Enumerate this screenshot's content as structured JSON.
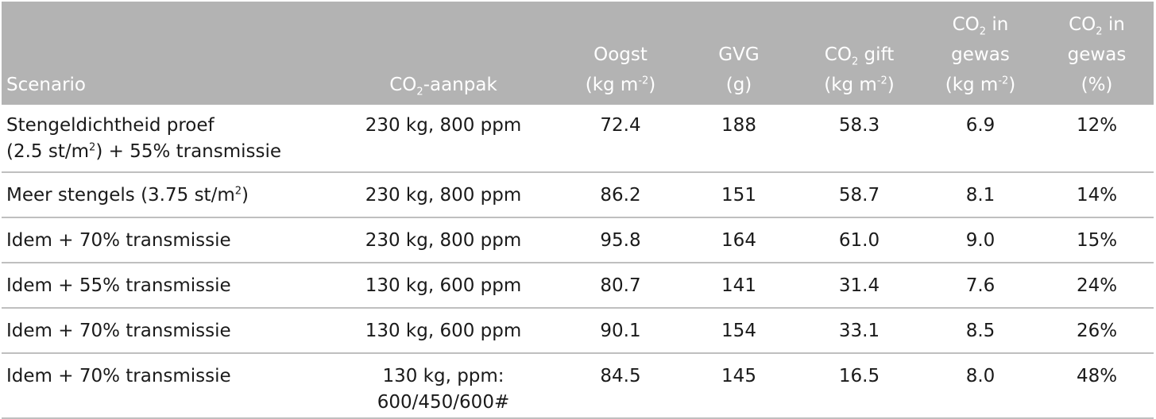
{
  "table": {
    "headers": {
      "scenario": "Scenario",
      "co2_aanpak": {
        "pre": "CO",
        "sub": "2",
        "post": "-aanpak"
      },
      "oogst": {
        "line1": "Oogst",
        "line2_pre": "(kg m",
        "line2_sup": "-2",
        "line2_post": ")"
      },
      "gvg": {
        "line1": "GVG",
        "line2": "(g)"
      },
      "co2_gift": {
        "pre": "CO",
        "sub": "2",
        "post": " gift",
        "line2_pre": "(kg m",
        "line2_sup": "-2",
        "line2_post": ")"
      },
      "co2_gewas_kg": {
        "pre": "CO",
        "sub": "2",
        "post": " in",
        "line2": "gewas",
        "line3_pre": "(kg m",
        "line3_sup": "-2",
        "line3_post": ")"
      },
      "co2_gewas_pct": {
        "pre": "CO",
        "sub": "2",
        "post": " in",
        "line2": "gewas",
        "line3": "(%)"
      }
    },
    "rows": [
      {
        "scenario_line1": "Stengeldichtheid proef",
        "scenario_line2_pre": "(2.5 st/m",
        "scenario_line2_sup": "2",
        "scenario_line2_post": ") + 55% transmissie",
        "co2_aanpak": "230 kg, 800 ppm",
        "oogst": "72.4",
        "gvg": "188",
        "co2_gift": "58.3",
        "co2_gewas_kg": "6.9",
        "co2_gewas_pct": "12%"
      },
      {
        "scenario_pre": "Meer stengels (3.75 st/m",
        "scenario_sup": "2",
        "scenario_post": ")",
        "co2_aanpak": "230 kg, 800 ppm",
        "oogst": "86.2",
        "gvg": "151",
        "co2_gift": "58.7",
        "co2_gewas_kg": "8.1",
        "co2_gewas_pct": "14%"
      },
      {
        "scenario": "Idem + 70% transmissie",
        "co2_aanpak": "230 kg, 800 ppm",
        "oogst": "95.8",
        "gvg": "164",
        "co2_gift": "61.0",
        "co2_gewas_kg": "9.0",
        "co2_gewas_pct": "15%"
      },
      {
        "scenario": "Idem + 55% transmissie",
        "co2_aanpak": "130 kg, 600 ppm",
        "oogst": "80.7",
        "gvg": "141",
        "co2_gift": "31.4",
        "co2_gewas_kg": "7.6",
        "co2_gewas_pct": "24%"
      },
      {
        "scenario": "Idem + 70% transmissie",
        "co2_aanpak": "130 kg, 600 ppm",
        "oogst": "90.1",
        "gvg": "154",
        "co2_gift": "33.1",
        "co2_gewas_kg": "8.5",
        "co2_gewas_pct": "26%"
      },
      {
        "scenario": "Idem + 70% transmissie",
        "co2_aanpak_line1": "130 kg, ppm:",
        "co2_aanpak_line2": "600/450/600#",
        "oogst": "84.5",
        "gvg": "145",
        "co2_gift": "16.5",
        "co2_gewas_kg": "8.0",
        "co2_gewas_pct": "48%"
      }
    ]
  }
}
